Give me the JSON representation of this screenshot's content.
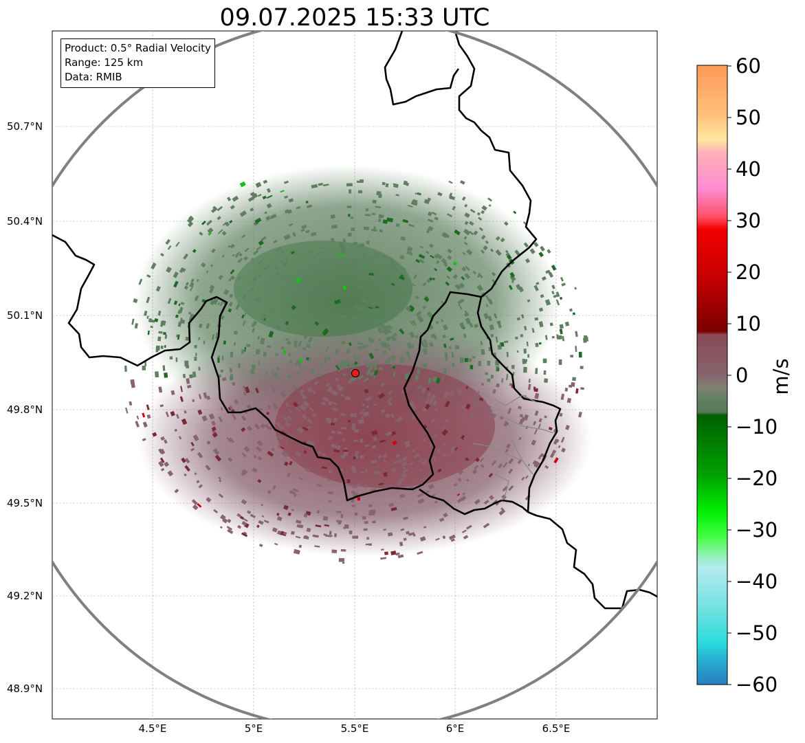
{
  "title": "09.07.2025 15:33 UTC",
  "info": {
    "product": "Product: 0.5° Radial Velocity",
    "range": "Range: 125 km",
    "source": "Data: RMIB"
  },
  "axes": {
    "lat_labels": [
      "50.7°N",
      "50.4°N",
      "50.1°N",
      "49.8°N",
      "49.5°N",
      "49.2°N",
      "48.9°N"
    ],
    "lon_labels": [
      "4.5°E",
      "5°E",
      "5.5°E",
      "6°E",
      "6.5°E"
    ]
  },
  "radar": {
    "site_marker": "radar-site",
    "color": "#e81d1d"
  },
  "colorbar": {
    "unit": "m/s",
    "ticks": [
      "60",
      "50",
      "40",
      "30",
      "20",
      "10",
      "0",
      "−10",
      "−20",
      "−30",
      "−40",
      "−50",
      "−60"
    ],
    "colors": {
      "top": "#ff9a58",
      "orange_light": "#ffd49a",
      "pink": "#ff8bd0",
      "red_light": "#ff4f66",
      "red": "#f20000",
      "dark_red": "#7a0000",
      "maroon_gray": "#87646e",
      "green_gray": "#5f8060",
      "dark_green": "#006000",
      "green": "#00ee00",
      "mint": "#8ff0b0",
      "cyan_light": "#b3ecef",
      "cyan": "#2ddddd",
      "blue": "#2a7fc0"
    }
  }
}
